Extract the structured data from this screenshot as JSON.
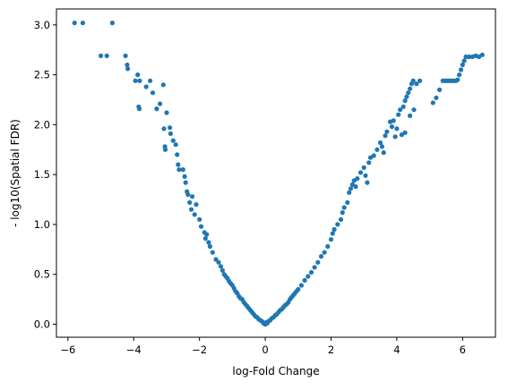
{
  "chart_data": {
    "type": "scatter",
    "title": "",
    "xlabel": "log-Fold Change",
    "ylabel": "- log10(Spatial FDR)",
    "xlim": [
      -6.35,
      7.0
    ],
    "ylim": [
      -0.13,
      3.16
    ],
    "x_ticks": [
      -6,
      -4,
      -2,
      0,
      2,
      4,
      6
    ],
    "y_ticks": [
      0.0,
      0.5,
      1.0,
      1.5,
      2.0,
      2.5,
      3.0
    ],
    "x_tick_labels": [
      "−6",
      "−4",
      "−2",
      "0",
      "2",
      "4",
      "6"
    ],
    "y_tick_labels": [
      "0.0",
      "0.5",
      "1.0",
      "1.5",
      "2.0",
      "2.5",
      "3.0"
    ],
    "grid": false,
    "legend": "none",
    "marker_color": "#1f77b4",
    "points": [
      [
        -5.8,
        3.02
      ],
      [
        -5.55,
        3.02
      ],
      [
        -4.65,
        3.02
      ],
      [
        -5.0,
        2.69
      ],
      [
        -4.82,
        2.69
      ],
      [
        -4.25,
        2.69
      ],
      [
        -4.2,
        2.6
      ],
      [
        -4.18,
        2.56
      ],
      [
        -3.95,
        2.44
      ],
      [
        -3.88,
        2.5
      ],
      [
        -3.82,
        2.44
      ],
      [
        -3.62,
        2.38
      ],
      [
        -3.5,
        2.44
      ],
      [
        -3.42,
        2.32
      ],
      [
        -3.3,
        2.16
      ],
      [
        -3.2,
        2.21
      ],
      [
        -3.1,
        2.4
      ],
      [
        -3.0,
        2.12
      ],
      [
        -3.85,
        2.18
      ],
      [
        -3.83,
        2.16
      ],
      [
        -2.9,
        1.97
      ],
      [
        -2.88,
        1.91
      ],
      [
        -2.8,
        1.84
      ],
      [
        -2.72,
        1.8
      ],
      [
        -2.68,
        1.7
      ],
      [
        -2.65,
        1.6
      ],
      [
        -2.62,
        1.55
      ],
      [
        -3.08,
        1.96
      ],
      [
        -3.05,
        1.78
      ],
      [
        -3.04,
        1.75
      ],
      [
        -2.5,
        1.55
      ],
      [
        -2.45,
        1.48
      ],
      [
        -2.42,
        1.42
      ],
      [
        -2.38,
        1.33
      ],
      [
        -2.35,
        1.3
      ],
      [
        -2.3,
        1.22
      ],
      [
        -2.25,
        1.15
      ],
      [
        -2.22,
        1.28
      ],
      [
        -2.15,
        1.1
      ],
      [
        -2.1,
        1.2
      ],
      [
        -2.0,
        1.05
      ],
      [
        -1.95,
        0.98
      ],
      [
        -1.85,
        0.92
      ],
      [
        -1.82,
        0.86
      ],
      [
        -1.78,
        0.9
      ],
      [
        -1.72,
        0.82
      ],
      [
        -1.68,
        0.78
      ],
      [
        -1.6,
        0.72
      ],
      [
        -1.5,
        0.65
      ],
      [
        -1.42,
        0.62
      ],
      [
        -1.35,
        0.58
      ],
      [
        -1.3,
        0.54
      ],
      [
        -1.25,
        0.5
      ],
      [
        -1.2,
        0.48
      ],
      [
        -1.15,
        0.46
      ],
      [
        -1.1,
        0.43
      ],
      [
        -1.05,
        0.41
      ],
      [
        -1.0,
        0.39
      ],
      [
        -0.95,
        0.36
      ],
      [
        -0.9,
        0.33
      ],
      [
        -0.85,
        0.31
      ],
      [
        -0.8,
        0.28
      ],
      [
        -0.75,
        0.26
      ],
      [
        -0.7,
        0.25
      ],
      [
        -0.65,
        0.22
      ],
      [
        -0.6,
        0.2
      ],
      [
        -0.55,
        0.18
      ],
      [
        -0.5,
        0.16
      ],
      [
        -0.45,
        0.14
      ],
      [
        -0.4,
        0.12
      ],
      [
        -0.35,
        0.1
      ],
      [
        -0.3,
        0.08
      ],
      [
        -0.25,
        0.07
      ],
      [
        -0.2,
        0.05
      ],
      [
        -0.15,
        0.04
      ],
      [
        -0.1,
        0.03
      ],
      [
        -0.05,
        0.01
      ],
      [
        0.0,
        0.0
      ],
      [
        0.03,
        0.02
      ],
      [
        0.06,
        0.01
      ],
      [
        0.1,
        0.03
      ],
      [
        0.15,
        0.04
      ],
      [
        0.2,
        0.06
      ],
      [
        0.25,
        0.07
      ],
      [
        0.3,
        0.09
      ],
      [
        0.35,
        0.1
      ],
      [
        0.4,
        0.12
      ],
      [
        0.45,
        0.14
      ],
      [
        0.5,
        0.15
      ],
      [
        0.55,
        0.17
      ],
      [
        0.6,
        0.19
      ],
      [
        0.65,
        0.2
      ],
      [
        0.7,
        0.22
      ],
      [
        0.75,
        0.25
      ],
      [
        0.8,
        0.27
      ],
      [
        0.85,
        0.29
      ],
      [
        0.9,
        0.31
      ],
      [
        0.95,
        0.33
      ],
      [
        1.0,
        0.35
      ],
      [
        1.1,
        0.39
      ],
      [
        1.2,
        0.44
      ],
      [
        1.3,
        0.48
      ],
      [
        1.4,
        0.52
      ],
      [
        1.5,
        0.57
      ],
      [
        1.6,
        0.62
      ],
      [
        1.7,
        0.68
      ],
      [
        1.8,
        0.72
      ],
      [
        1.9,
        0.78
      ],
      [
        2.0,
        0.85
      ],
      [
        2.05,
        0.91
      ],
      [
        2.1,
        0.95
      ],
      [
        2.2,
        1.0
      ],
      [
        2.3,
        1.05
      ],
      [
        2.35,
        1.12
      ],
      [
        2.4,
        1.17
      ],
      [
        2.5,
        1.22
      ],
      [
        2.55,
        1.32
      ],
      [
        2.6,
        1.36
      ],
      [
        2.65,
        1.4
      ],
      [
        2.7,
        1.44
      ],
      [
        2.75,
        1.38
      ],
      [
        2.8,
        1.46
      ],
      [
        2.9,
        1.52
      ],
      [
        3.0,
        1.57
      ],
      [
        3.05,
        1.49
      ],
      [
        3.1,
        1.42
      ],
      [
        3.15,
        1.62
      ],
      [
        3.2,
        1.67
      ],
      [
        3.3,
        1.69
      ],
      [
        3.4,
        1.75
      ],
      [
        3.5,
        1.82
      ],
      [
        3.55,
        1.78
      ],
      [
        3.6,
        1.72
      ],
      [
        3.65,
        1.89
      ],
      [
        3.7,
        1.93
      ],
      [
        3.8,
        2.03
      ],
      [
        3.85,
        1.98
      ],
      [
        3.9,
        2.04
      ],
      [
        3.95,
        1.88
      ],
      [
        4.0,
        1.96
      ],
      [
        4.05,
        2.1
      ],
      [
        4.1,
        2.15
      ],
      [
        4.2,
        2.18
      ],
      [
        4.25,
        2.24
      ],
      [
        4.3,
        2.28
      ],
      [
        4.35,
        2.32
      ],
      [
        4.4,
        2.36
      ],
      [
        4.45,
        2.41
      ],
      [
        4.5,
        2.44
      ],
      [
        4.6,
        2.41
      ],
      [
        4.7,
        2.44
      ],
      [
        4.52,
        2.15
      ],
      [
        4.4,
        2.09
      ],
      [
        4.25,
        1.92
      ],
      [
        4.15,
        1.9
      ],
      [
        5.1,
        2.22
      ],
      [
        5.2,
        2.27
      ],
      [
        5.3,
        2.35
      ],
      [
        5.4,
        2.44
      ],
      [
        5.45,
        2.44
      ],
      [
        5.5,
        2.44
      ],
      [
        5.55,
        2.44
      ],
      [
        5.6,
        2.44
      ],
      [
        5.65,
        2.44
      ],
      [
        5.7,
        2.44
      ],
      [
        5.75,
        2.44
      ],
      [
        5.8,
        2.44
      ],
      [
        5.85,
        2.45
      ],
      [
        5.9,
        2.5
      ],
      [
        5.95,
        2.55
      ],
      [
        6.0,
        2.6
      ],
      [
        6.05,
        2.64
      ],
      [
        6.1,
        2.68
      ],
      [
        6.2,
        2.68
      ],
      [
        6.3,
        2.68
      ],
      [
        6.4,
        2.69
      ],
      [
        6.5,
        2.68
      ],
      [
        6.6,
        2.7
      ]
    ]
  }
}
